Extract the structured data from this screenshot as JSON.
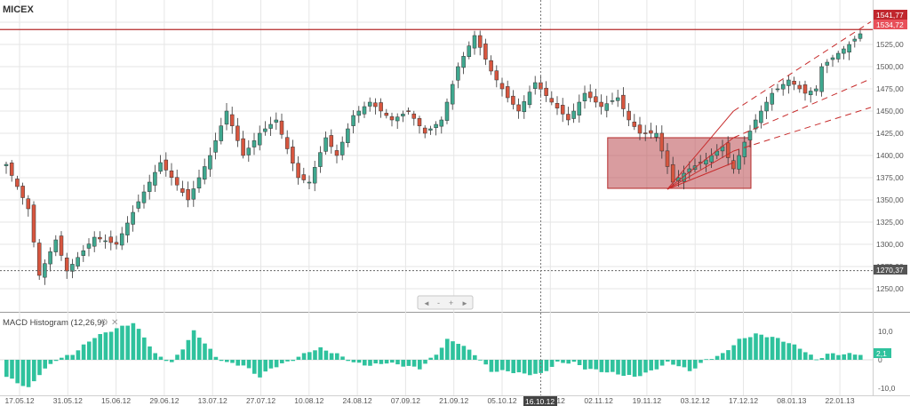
{
  "chart_title": "MICEX",
  "colors": {
    "up": "#3fa88f",
    "down": "#d7563f",
    "grid": "#e6e6e6",
    "resistance": "#b52a2a",
    "fan": "#c72c2c",
    "box_fill": "#b94a50",
    "hist": "#2fc29d",
    "axis_text": "#555555"
  },
  "price_labels": {
    "last_high": "1541,77",
    "last_close": "1534,72",
    "support": "1270,37"
  },
  "nav_buttons": [
    "◄",
    "-",
    "+",
    "►"
  ],
  "macd_title": "MACD Histogram (12,26,9)",
  "macd_value_label": "2,1",
  "crosshair_date": "16.10.12",
  "chart_data": [
    {
      "type": "candlestick",
      "title": "MICEX",
      "y_ticks": [
        1250,
        1275,
        1300,
        1325,
        1350,
        1375,
        1400,
        1425,
        1450,
        1475,
        1500,
        1525,
        1550
      ],
      "y_tick_labels": [
        "1250,00",
        "1275,00",
        "1300,00",
        "1325,00",
        "1350,00",
        "1375,00",
        "1400,00",
        "1425,00",
        "1450,00",
        "1475,00",
        "1500,00",
        "1525,00",
        "1550,00"
      ],
      "ylim": [
        1228,
        1551
      ],
      "x_tick_labels": [
        "17.05.12",
        "31.05.12",
        "15.06.12",
        "29.06.12",
        "13.07.12",
        "27.07.12",
        "10.08.12",
        "24.08.12",
        "07.09.12",
        "21.09.12",
        "05.10.12",
        "19.10.12",
        "02.11.12",
        "19.11.12",
        "03.12.12",
        "17.12.12",
        "08.01.13",
        "22.01.13"
      ],
      "resistance_level": 1541.77,
      "support_level": 1270.37,
      "last_close": 1534.72,
      "keypoints": [
        [
          0,
          1390
        ],
        [
          4,
          1340
        ],
        [
          6,
          1265
        ],
        [
          9,
          1305
        ],
        [
          11,
          1270
        ],
        [
          16,
          1308
        ],
        [
          20,
          1300
        ],
        [
          24,
          1348
        ],
        [
          28,
          1392
        ],
        [
          33,
          1350
        ],
        [
          37,
          1400
        ],
        [
          40,
          1450
        ],
        [
          43,
          1400
        ],
        [
          46,
          1425
        ],
        [
          49,
          1440
        ],
        [
          53,
          1375
        ],
        [
          55,
          1370
        ],
        [
          58,
          1420
        ],
        [
          60,
          1400
        ],
        [
          63,
          1445
        ],
        [
          66,
          1460
        ],
        [
          70,
          1440
        ],
        [
          73,
          1450
        ],
        [
          76,
          1425
        ],
        [
          79,
          1440
        ],
        [
          82,
          1500
        ],
        [
          85,
          1535
        ],
        [
          88,
          1495
        ],
        [
          91,
          1465
        ],
        [
          93,
          1450
        ],
        [
          96,
          1482
        ],
        [
          99,
          1460
        ],
        [
          102,
          1440
        ],
        [
          105,
          1470
        ],
        [
          108,
          1455
        ],
        [
          111,
          1465
        ],
        [
          113,
          1440
        ],
        [
          115,
          1425
        ],
        [
          118,
          1425
        ],
        [
          119,
          1405
        ],
        [
          121,
          1370
        ],
        [
          124,
          1385
        ],
        [
          127,
          1395
        ],
        [
          130,
          1410
        ],
        [
          132,
          1385
        ],
        [
          134,
          1415
        ],
        [
          136,
          1440
        ],
        [
          139,
          1470
        ],
        [
          142,
          1485
        ],
        [
          145,
          1470
        ],
        [
          147,
          1475
        ],
        [
          148,
          1500
        ],
        [
          151,
          1515
        ],
        [
          153,
          1525
        ],
        [
          155,
          1537
        ]
      ],
      "fan_origin": {
        "x_index": 120,
        "value": 1362
      },
      "fan_lines": [
        {
          "to_index": 132,
          "to_value": 1450
        },
        {
          "to_index": 132,
          "to_value": 1420
        },
        {
          "to_index": 132,
          "to_value": 1405
        },
        {
          "to_index": 132,
          "to_value": 1392
        }
      ],
      "highlight_box": {
        "x_from_index": 109,
        "x_to_index": 135,
        "y_from": 1363,
        "y_to": 1420
      }
    },
    {
      "type": "bar",
      "title": "MACD Histogram (12,26,9)",
      "y_tick_labels": [
        "10,0",
        "0",
        "-10,0"
      ],
      "y_ticks": [
        10,
        0,
        -10
      ],
      "ylim": [
        -14,
        14
      ],
      "last_value": 2.1,
      "keypoints": [
        [
          0,
          -6
        ],
        [
          4,
          -10
        ],
        [
          6,
          -5
        ],
        [
          9,
          0
        ],
        [
          12,
          2
        ],
        [
          16,
          8
        ],
        [
          20,
          11
        ],
        [
          23,
          13
        ],
        [
          25,
          8
        ],
        [
          27,
          2
        ],
        [
          30,
          -1
        ],
        [
          32,
          4
        ],
        [
          34,
          10
        ],
        [
          36,
          6
        ],
        [
          38,
          1
        ],
        [
          40,
          -1
        ],
        [
          43,
          -2
        ],
        [
          46,
          -6
        ],
        [
          48,
          -3
        ],
        [
          52,
          0
        ],
        [
          55,
          3
        ],
        [
          57,
          4
        ],
        [
          60,
          2
        ],
        [
          63,
          -1
        ],
        [
          66,
          -2
        ],
        [
          69,
          -1
        ],
        [
          72,
          -2
        ],
        [
          75,
          -3
        ],
        [
          78,
          2
        ],
        [
          80,
          7
        ],
        [
          82,
          6
        ],
        [
          85,
          2
        ],
        [
          88,
          -4
        ],
        [
          91,
          -4
        ],
        [
          94,
          -5
        ],
        [
          97,
          -5
        ],
        [
          100,
          -1
        ],
        [
          103,
          -1
        ],
        [
          105,
          -3
        ],
        [
          108,
          -4
        ],
        [
          111,
          -5
        ],
        [
          114,
          -6
        ],
        [
          117,
          -4
        ],
        [
          120,
          -1
        ],
        [
          122,
          -2
        ],
        [
          124,
          -4
        ],
        [
          127,
          0
        ],
        [
          130,
          2
        ],
        [
          133,
          7
        ],
        [
          136,
          9
        ],
        [
          139,
          8
        ],
        [
          142,
          6
        ],
        [
          145,
          3
        ],
        [
          147,
          0
        ],
        [
          149,
          2
        ],
        [
          152,
          2
        ],
        [
          155,
          2
        ]
      ]
    }
  ]
}
